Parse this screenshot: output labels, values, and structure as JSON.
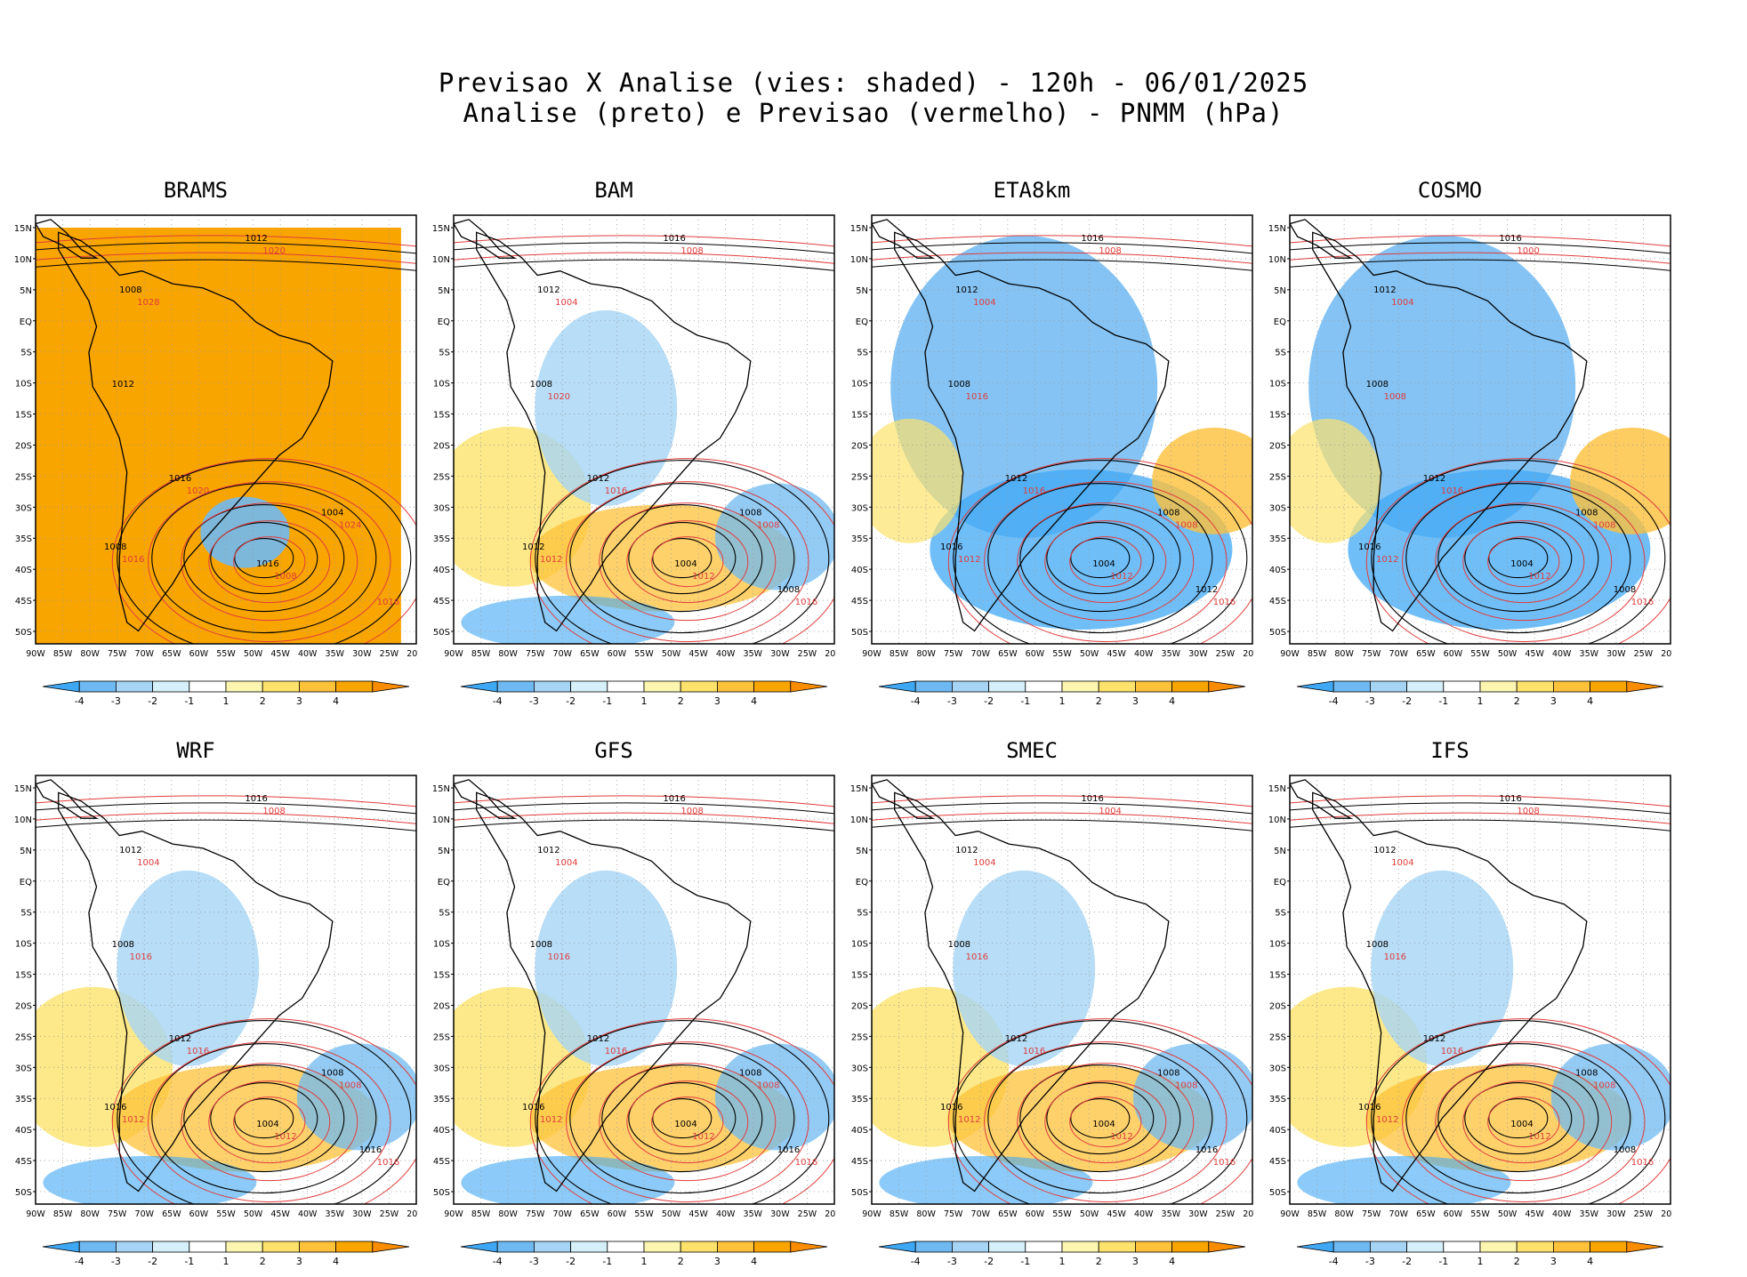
{
  "header": {
    "line1": "Previsao X Analise (vies: shaded) - 120h - 06/01/2025",
    "line2": "Analise (preto) e Previsao (vermelho) - PNMM (hPa)"
  },
  "axes": {
    "lat_labels": [
      "15N",
      "10N",
      "5N",
      "EQ",
      "5S",
      "10S",
      "15S",
      "20S",
      "25S",
      "30S",
      "35S",
      "40S",
      "45S",
      "50S"
    ],
    "lon_labels": [
      "90W",
      "85W",
      "80W",
      "75W",
      "70W",
      "65W",
      "60W",
      "55W",
      "50W",
      "45W",
      "40W",
      "35W",
      "30W",
      "25W",
      "20W"
    ]
  },
  "colorbar": {
    "labels": [
      "-4",
      "-3",
      "-2",
      "-1",
      "1",
      "2",
      "3",
      "4"
    ],
    "colors": [
      "#3fa8f5",
      "#6fb9f2",
      "#a5d4f5",
      "#d6f0fa",
      "#ffffff",
      "#fdf6b0",
      "#fde36c",
      "#fdc13a",
      "#f9a500",
      "#f98c00"
    ]
  },
  "colors": {
    "analysis_isobar": "#000000",
    "forecast_isobar": "#e03c3c",
    "positive_bias": "#f9a500",
    "negative_bias": "#3fa8f5",
    "land_outline": "#000000"
  },
  "panels": [
    {
      "model": "BRAMS",
      "bias": "positive",
      "labels_black": [
        "1012",
        "1008",
        "1012",
        "1016",
        "1008",
        "1004",
        "1016"
      ],
      "labels_red": [
        "1020",
        "1016",
        "1024",
        "1008",
        "1016",
        "1020",
        "1028"
      ]
    },
    {
      "model": "BAM",
      "bias": "mixed",
      "labels_black": [
        "1016",
        "1012",
        "1008",
        "1012",
        "1012",
        "1008",
        "1004",
        "1008"
      ],
      "labels_red": [
        "1016",
        "1012",
        "1008",
        "1012",
        "1016",
        "1008",
        "1004",
        "1020"
      ]
    },
    {
      "model": "ETA8km",
      "bias": "negative",
      "labels_black": [
        "1016",
        "1012",
        "1008",
        "1012",
        "1016",
        "1008",
        "1004",
        "1012"
      ],
      "labels_red": [
        "1016",
        "1012",
        "1008",
        "1012",
        "1016",
        "1008",
        "1004",
        "1016"
      ]
    },
    {
      "model": "COSMO",
      "bias": "negative",
      "labels_black": [
        "1016",
        "1012",
        "1008",
        "1012",
        "1016",
        "1008",
        "1004",
        "1008"
      ],
      "labels_red": [
        "1016",
        "1012",
        "1008",
        "1012",
        "1016",
        "1000",
        "1004",
        "1008"
      ]
    },
    {
      "model": "WRF",
      "bias": "mixed",
      "labels_black": [
        "1016",
        "1012",
        "1008",
        "1012",
        "1016",
        "1008",
        "1004",
        "1016"
      ],
      "labels_red": [
        "1016",
        "1012",
        "1008",
        "1012",
        "1016",
        "1008",
        "1004",
        "1016"
      ]
    },
    {
      "model": "GFS",
      "bias": "mixed",
      "labels_black": [
        "1016",
        "1012",
        "1008",
        "1012",
        "1016",
        "1008",
        "1004",
        "1016"
      ],
      "labels_red": [
        "1016",
        "1012",
        "1008",
        "1012",
        "1016",
        "1008",
        "1004",
        "1016"
      ]
    },
    {
      "model": "SMEC",
      "bias": "mixed",
      "labels_black": [
        "1016",
        "1012",
        "1008",
        "1012",
        "1016",
        "1008",
        "1004",
        "1016"
      ],
      "labels_red": [
        "1016",
        "1012",
        "1008",
        "1012",
        "1016",
        "1004",
        "1004",
        "1016"
      ]
    },
    {
      "model": "IFS",
      "bias": "mixed",
      "labels_black": [
        "1016",
        "1012",
        "1008",
        "1012",
        "1016",
        "1008",
        "1004",
        "1008"
      ],
      "labels_red": [
        "1016",
        "1012",
        "1008",
        "1012",
        "1016",
        "1008",
        "1004",
        "1016"
      ]
    }
  ]
}
